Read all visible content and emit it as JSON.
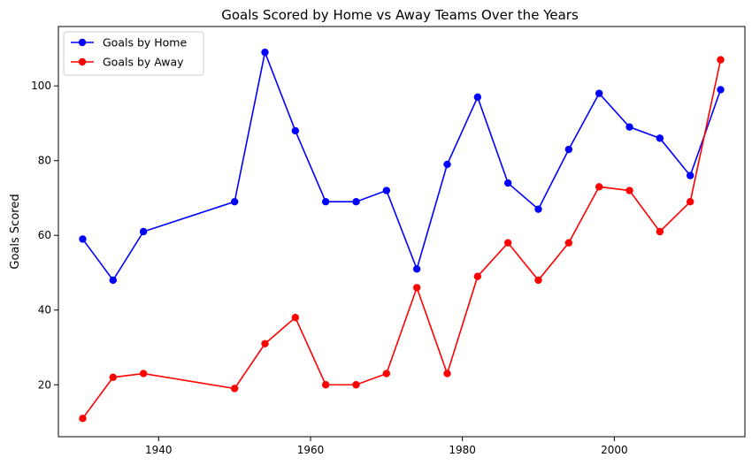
{
  "chart_data": {
    "type": "line",
    "title": "Goals Scored by Home vs Away Teams Over the Years",
    "xlabel": "",
    "ylabel": "Goals Scored",
    "xlim": [
      1926.8,
      2017.2
    ],
    "ylim": [
      6.1,
      115.9
    ],
    "xticks": [
      1940,
      1960,
      1980,
      2000
    ],
    "yticks": [
      20,
      40,
      60,
      80,
      100
    ],
    "grid": false,
    "legend_position": "top-left",
    "x": [
      1930,
      1934,
      1938,
      1950,
      1954,
      1958,
      1962,
      1966,
      1970,
      1974,
      1978,
      1982,
      1986,
      1990,
      1994,
      1998,
      2002,
      2006,
      2010,
      2014
    ],
    "series": [
      {
        "name": "Goals by Home",
        "color": "#0000ff",
        "marker": "circle",
        "values": [
          59,
          48,
          61,
          69,
          109,
          88,
          69,
          69,
          72,
          51,
          79,
          97,
          74,
          67,
          83,
          98,
          89,
          86,
          76,
          99
        ]
      },
      {
        "name": "Goals by Away",
        "color": "#ff0000",
        "marker": "circle",
        "values": [
          11,
          22,
          23,
          19,
          31,
          38,
          20,
          20,
          23,
          46,
          23,
          49,
          58,
          48,
          58,
          73,
          72,
          61,
          69,
          107
        ]
      }
    ]
  }
}
